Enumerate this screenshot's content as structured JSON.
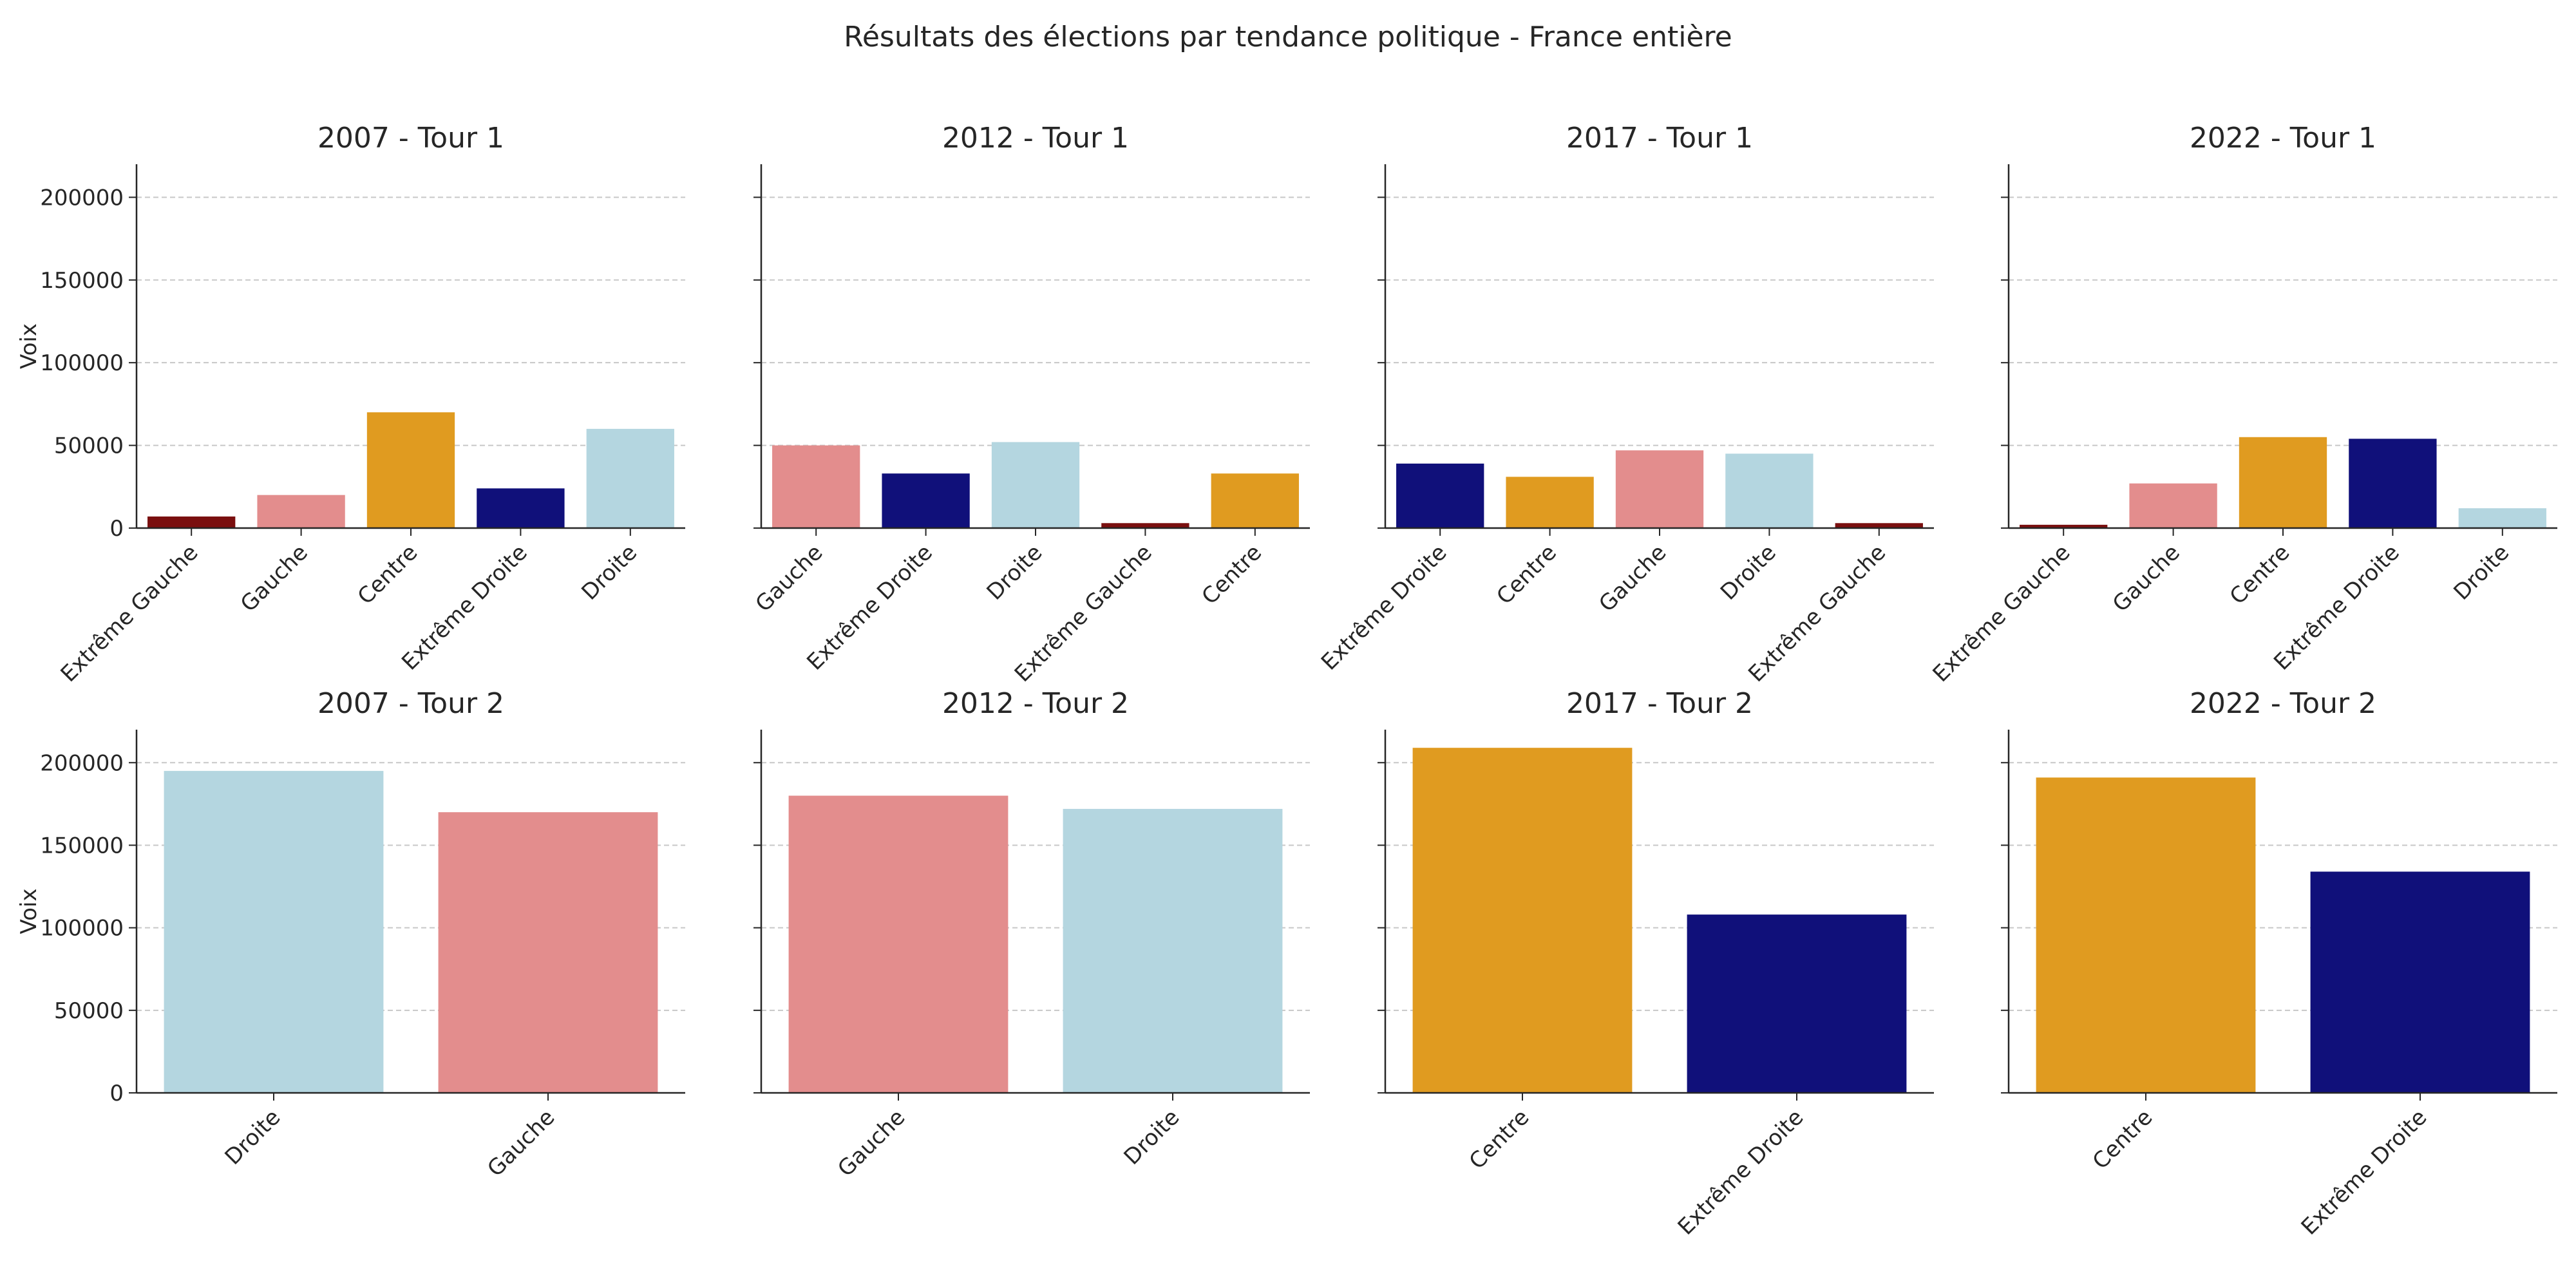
{
  "figure": {
    "title": "Résultats des élections par tendance politique - France entière"
  },
  "colors": {
    "Extrême Gauche": "#7a0f0f",
    "Gauche": "#e38d8d",
    "Centre": "#e09b20",
    "Extrême Droite": "#10107a",
    "Droite": "#b4d6e0"
  },
  "chart_data": [
    {
      "type": "bar",
      "title": "2007 - Tour 1",
      "ylabel": "Voix",
      "ylim": [
        0,
        220000
      ],
      "yticks": [
        0,
        50000,
        100000,
        150000,
        200000
      ],
      "grid": true,
      "categories": [
        "Extrême Gauche",
        "Gauche",
        "Centre",
        "Extrême Droite",
        "Droite"
      ],
      "values": [
        7000,
        20000,
        70000,
        24000,
        60000
      ]
    },
    {
      "type": "bar",
      "title": "2012 - Tour 1",
      "ylabel": "",
      "ylim": [
        0,
        220000
      ],
      "yticks": [
        0,
        50000,
        100000,
        150000,
        200000
      ],
      "grid": true,
      "categories": [
        "Gauche",
        "Extrême Droite",
        "Droite",
        "Extrême Gauche",
        "Centre"
      ],
      "values": [
        50000,
        33000,
        52000,
        3000,
        33000
      ]
    },
    {
      "type": "bar",
      "title": "2017 - Tour 1",
      "ylabel": "",
      "ylim": [
        0,
        220000
      ],
      "yticks": [
        0,
        50000,
        100000,
        150000,
        200000
      ],
      "grid": true,
      "categories": [
        "Extrême Droite",
        "Centre",
        "Gauche",
        "Droite",
        "Extrême Gauche"
      ],
      "values": [
        39000,
        31000,
        47000,
        45000,
        3000
      ]
    },
    {
      "type": "bar",
      "title": "2022 - Tour 1",
      "ylabel": "",
      "ylim": [
        0,
        220000
      ],
      "yticks": [
        0,
        50000,
        100000,
        150000,
        200000
      ],
      "grid": true,
      "categories": [
        "Extrême Gauche",
        "Gauche",
        "Centre",
        "Extrême Droite",
        "Droite"
      ],
      "values": [
        2000,
        27000,
        55000,
        54000,
        12000
      ]
    },
    {
      "type": "bar",
      "title": "2007 - Tour 2",
      "ylabel": "Voix",
      "ylim": [
        0,
        220000
      ],
      "yticks": [
        0,
        50000,
        100000,
        150000,
        200000
      ],
      "grid": true,
      "categories": [
        "Droite",
        "Gauche"
      ],
      "values": [
        195000,
        170000
      ]
    },
    {
      "type": "bar",
      "title": "2012 - Tour 2",
      "ylabel": "",
      "ylim": [
        0,
        220000
      ],
      "yticks": [
        0,
        50000,
        100000,
        150000,
        200000
      ],
      "grid": true,
      "categories": [
        "Gauche",
        "Droite"
      ],
      "values": [
        180000,
        172000
      ]
    },
    {
      "type": "bar",
      "title": "2017 - Tour 2",
      "ylabel": "",
      "ylim": [
        0,
        220000
      ],
      "yticks": [
        0,
        50000,
        100000,
        150000,
        200000
      ],
      "grid": true,
      "categories": [
        "Centre",
        "Extrême Droite"
      ],
      "values": [
        209000,
        108000
      ]
    },
    {
      "type": "bar",
      "title": "2022 - Tour 2",
      "ylabel": "",
      "ylim": [
        0,
        220000
      ],
      "yticks": [
        0,
        50000,
        100000,
        150000,
        200000
      ],
      "grid": true,
      "categories": [
        "Centre",
        "Extrême Droite"
      ],
      "values": [
        191000,
        134000
      ]
    }
  ]
}
